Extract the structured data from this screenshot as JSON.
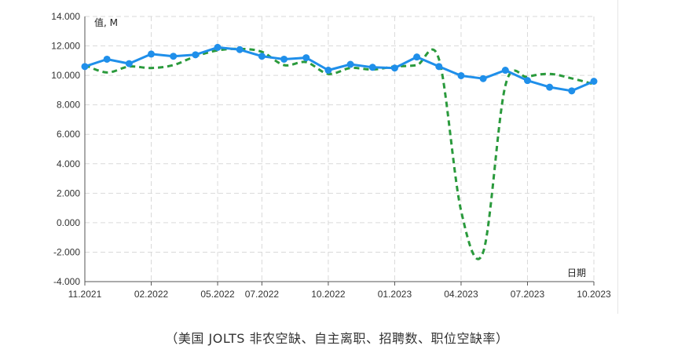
{
  "chart_data": {
    "type": "line",
    "ylabel": "值, M",
    "xlabel": "日期",
    "ylim": [
      -4,
      14
    ],
    "y_ticks": [
      14,
      12,
      10,
      8,
      6,
      4,
      2,
      0,
      -2,
      -4
    ],
    "y_tick_labels": [
      "14.000",
      "12.000",
      "10.000",
      "8.000",
      "6.000",
      "4.000",
      "2.000",
      "0.000",
      "-2.000",
      "-4.000"
    ],
    "x_ticks": [
      "2021-11",
      "2022-02",
      "2022-05",
      "2022-07",
      "2022-10",
      "2023-01",
      "2023-04",
      "2023-07",
      "2023-10"
    ],
    "x_tick_labels": [
      "11.2021",
      "02.2022",
      "05.2022",
      "07.2022",
      "10.2022",
      "01.2023",
      "04.2023",
      "07.2023",
      "10.2023"
    ],
    "grid": true,
    "series": [
      {
        "style": "solid-markers",
        "color": "#1f8fea",
        "x": [
          "2021-11",
          "2021-12",
          "2022-01",
          "2022-02",
          "2022-03",
          "2022-04",
          "2022-05",
          "2022-06",
          "2022-07",
          "2022-08",
          "2022-09",
          "2022-10",
          "2022-11",
          "2022-12",
          "2023-01",
          "2023-02",
          "2023-03",
          "2023-04",
          "2023-05",
          "2023-06",
          "2023-07",
          "2023-08",
          "2023-09",
          "2023-10"
        ],
        "values": [
          10.6,
          11.1,
          10.8,
          11.45,
          11.3,
          11.4,
          11.9,
          11.75,
          11.3,
          11.1,
          11.2,
          10.35,
          10.75,
          10.55,
          10.5,
          11.25,
          10.6,
          9.98,
          9.78,
          10.35,
          9.65,
          9.2,
          8.95,
          9.6
        ]
      },
      {
        "style": "dashed",
        "color": "#2a9a3c",
        "x": [
          "2021-11",
          "2021-12",
          "2022-01",
          "2022-02",
          "2022-03",
          "2022-04",
          "2022-05",
          "2022-06",
          "2022-07",
          "2022-08",
          "2022-09",
          "2022-10",
          "2022-11",
          "2022-12",
          "2023-01",
          "2023-02",
          "2023-03",
          "2023-04",
          "2023-05",
          "2023-06",
          "2023-07",
          "2023-08",
          "2023-09",
          "2023-10"
        ],
        "values": [
          10.7,
          10.2,
          10.6,
          10.5,
          10.7,
          11.3,
          11.7,
          11.8,
          11.6,
          10.7,
          10.9,
          10.1,
          10.5,
          10.4,
          10.6,
          10.7,
          11.1,
          0.8,
          -2.0,
          9.3,
          9.9,
          10.1,
          9.8,
          9.4
        ]
      }
    ]
  },
  "caption": "（美国 JOLTS 非农空缺、自主离职、招聘数、职位空缺率）"
}
